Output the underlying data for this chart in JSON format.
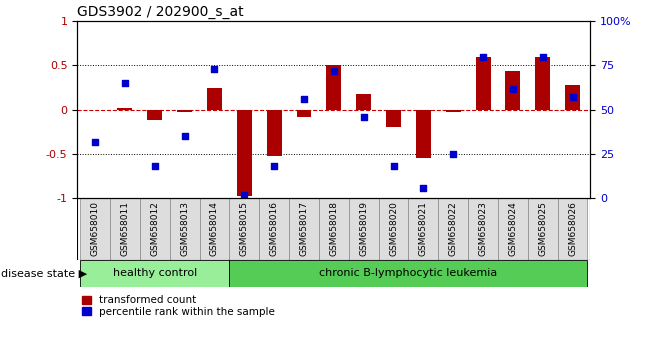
{
  "title": "GDS3902 / 202900_s_at",
  "samples": [
    "GSM658010",
    "GSM658011",
    "GSM658012",
    "GSM658013",
    "GSM658014",
    "GSM658015",
    "GSM658016",
    "GSM658017",
    "GSM658018",
    "GSM658019",
    "GSM658020",
    "GSM658021",
    "GSM658022",
    "GSM658023",
    "GSM658024",
    "GSM658025",
    "GSM658026"
  ],
  "bar_values": [
    0.0,
    0.02,
    -0.12,
    -0.02,
    0.25,
    -0.97,
    -0.52,
    -0.08,
    0.5,
    0.18,
    -0.2,
    -0.55,
    -0.02,
    0.6,
    0.44,
    0.6,
    0.28
  ],
  "dot_values": [
    32,
    65,
    18,
    35,
    73,
    2,
    18,
    56,
    72,
    46,
    18,
    6,
    25,
    80,
    62,
    80,
    57
  ],
  "bar_color": "#AA0000",
  "dot_color": "#0000CC",
  "hline_color": "#CC0000",
  "healthy_count": 5,
  "healthy_label": "healthy control",
  "disease_label": "chronic B-lymphocytic leukemia",
  "healthy_color": "#99EE99",
  "disease_color": "#55CC55",
  "bg_color": "#FFFFFF",
  "label_bg_color": "#DDDDDD",
  "ylim_left": [
    -1,
    1
  ],
  "ylim_right": [
    0,
    100
  ],
  "yticks_left": [
    -1,
    -0.5,
    0,
    0.5,
    1
  ],
  "ytick_labels_left": [
    "-1",
    "-0.5",
    "0",
    "0.5",
    "1"
  ],
  "yticks_right": [
    0,
    25,
    50,
    75,
    100
  ],
  "ytick_labels_right": [
    "0",
    "25",
    "50",
    "75",
    "100%"
  ],
  "legend_bar": "transformed count",
  "legend_dot": "percentile rank within the sample",
  "disease_state_label": "disease state"
}
